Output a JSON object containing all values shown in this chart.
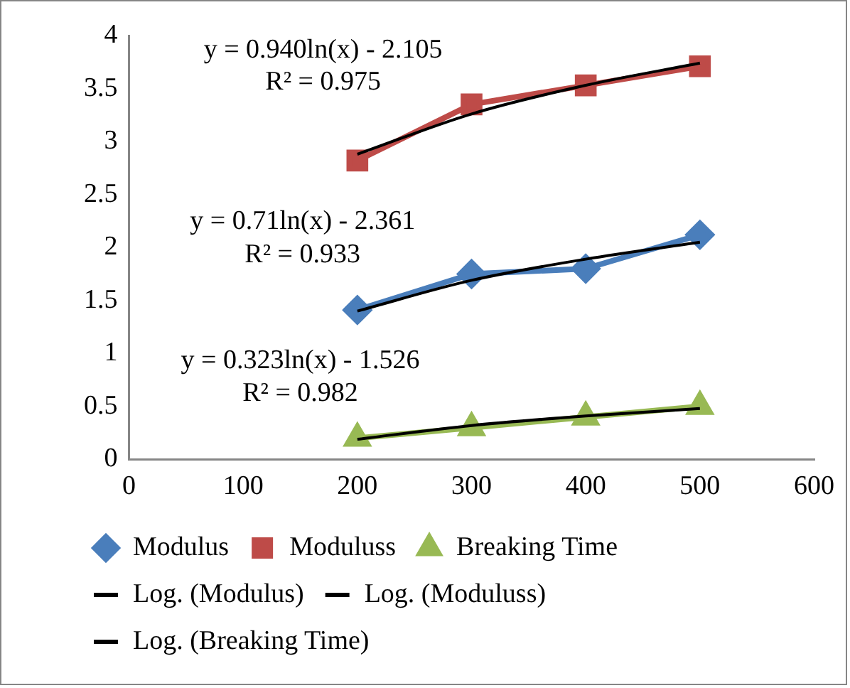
{
  "chart_data": {
    "type": "line",
    "x": [
      200,
      300,
      400,
      500
    ],
    "series": [
      {
        "name": "Modulus",
        "color": "#4a7ebb",
        "marker": "diamond",
        "values": [
          1.41,
          1.75,
          1.8,
          2.12
        ]
      },
      {
        "name": "Moduluss",
        "color": "#be4b48",
        "marker": "square",
        "values": [
          2.82,
          3.35,
          3.53,
          3.71
        ]
      },
      {
        "name": "Breaking Time",
        "color": "#98b954",
        "marker": "triangle",
        "values": [
          0.2,
          0.3,
          0.4,
          0.5
        ]
      },
      {
        "name": "Log. (Modulus)",
        "type": "line",
        "color": "#000000",
        "marker": "none",
        "x": [
          200,
          300,
          400,
          500
        ],
        "values": [
          1.4,
          1.69,
          1.89,
          2.05
        ]
      },
      {
        "name": "Log. (Moduluss)",
        "type": "line",
        "color": "#000000",
        "marker": "none",
        "x": [
          200,
          300,
          400,
          500
        ],
        "values": [
          2.88,
          3.26,
          3.53,
          3.74
        ]
      },
      {
        "name": "Log. (Breaking Time)",
        "type": "line",
        "color": "#000000",
        "marker": "none",
        "x": [
          200,
          300,
          400,
          500
        ],
        "values": [
          0.19,
          0.32,
          0.41,
          0.48
        ]
      }
    ],
    "xlim": [
      0,
      600
    ],
    "xticks": [
      0,
      100,
      200,
      300,
      400,
      500,
      600
    ],
    "ylim": [
      0,
      4
    ],
    "yticks": [
      0,
      0.5,
      1,
      1.5,
      2,
      2.5,
      3,
      3.5,
      4
    ],
    "grid": false,
    "legend": "bottom",
    "annotations": [
      "y = 0.71ln(x) - 2.361",
      "R² = 0.933",
      "y = 0.940ln(x) - 2.105",
      "R² = 0.975",
      "y = 0.323ln(x) - 1.526",
      "R² = 0.982"
    ]
  }
}
